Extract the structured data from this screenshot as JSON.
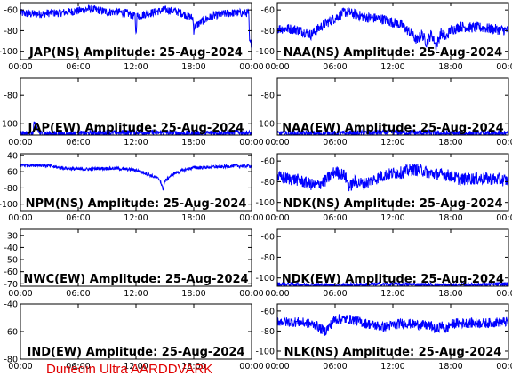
{
  "footer": "Dunedin Ultra AARDDVARK",
  "colors": {
    "trace": "#0000ff",
    "frame": "#000000",
    "footer": "#e00000"
  },
  "chart_data": [
    {
      "type": "line",
      "title": "JAP(NS) Amplitude: 25-Aug-2024",
      "xticks": [
        "00:00",
        "06:00",
        "12:00",
        "18:00",
        "00:00"
      ],
      "yticks": [
        "-60",
        "-80",
        "-100"
      ],
      "ylim": [
        -108,
        -53
      ],
      "series": [
        {
          "x": [
            0,
            1,
            2,
            3,
            4,
            5,
            6,
            7,
            8,
            9,
            10,
            11,
            11.9,
            12,
            12.1,
            13,
            14,
            15,
            16,
            17,
            17.9,
            18,
            18.1,
            19,
            20,
            21,
            22,
            23,
            23.7,
            23.8,
            24
          ],
          "y": [
            -63,
            -64,
            -64,
            -63,
            -63,
            -62,
            -61,
            -59,
            -60,
            -62,
            -62,
            -63,
            -66,
            -84,
            -66,
            -64,
            -62,
            -60,
            -61,
            -64,
            -68,
            -80,
            -76,
            -70,
            -66,
            -64,
            -63,
            -63,
            -63,
            -92,
            -92
          ],
          "noise": 4
        }
      ]
    },
    {
      "type": "line",
      "title": "NAA(NS) Amplitude: 25-Aug-2024",
      "xticks": [
        "00:00",
        "06:00",
        "12:00",
        "18:00",
        "00:00"
      ],
      "yticks": [
        "-60",
        "-80",
        "-100"
      ],
      "ylim": [
        -108,
        -53
      ],
      "series": [
        {
          "x": [
            0,
            1,
            2,
            3,
            3.5,
            4,
            5,
            6,
            7,
            8,
            9,
            10,
            11,
            12,
            13,
            14,
            14.5,
            15,
            15.5,
            16,
            16.5,
            17,
            17.5,
            18,
            18.5,
            19,
            20,
            21,
            22,
            23,
            24
          ],
          "y": [
            -78,
            -78,
            -79,
            -82,
            -84,
            -80,
            -73,
            -68,
            -62,
            -64,
            -67,
            -68,
            -69,
            -72,
            -75,
            -84,
            -90,
            -83,
            -92,
            -83,
            -95,
            -82,
            -87,
            -79,
            -78,
            -76,
            -77,
            -77,
            -78,
            -79,
            -80
          ],
          "noise": 5
        }
      ]
    },
    {
      "type": "line",
      "title": "JAP(EW) Amplitude: 25-Aug-2024",
      "xticks": [
        "00:00",
        "06:00",
        "12:00",
        "18:00",
        "00:00"
      ],
      "yticks": [
        "-80",
        "-100"
      ],
      "ylim": [
        -108,
        -68
      ],
      "series": [
        {
          "x": [
            0,
            1,
            1.3,
            1.4,
            2,
            6,
            12,
            18,
            23,
            24
          ],
          "y": [
            -107,
            -107,
            -107,
            -99,
            -107,
            -107,
            -106,
            -107,
            -106,
            -107
          ],
          "noise": 2
        }
      ]
    },
    {
      "type": "line",
      "title": "NAA(EW) Amplitude: 25-Aug-2024",
      "xticks": [
        "00:00",
        "06:00",
        "12:00",
        "18:00",
        "00:00"
      ],
      "yticks": [
        "-80",
        "-100"
      ],
      "ylim": [
        -108,
        -68
      ],
      "series": [
        {
          "x": [
            0,
            6,
            12,
            18,
            24
          ],
          "y": [
            -107,
            -107,
            -106,
            -107,
            -107
          ],
          "noise": 2
        }
      ]
    },
    {
      "type": "line",
      "title": "NPM(NS) Amplitude: 25-Aug-2024",
      "xticks": [
        "00:00",
        "06:00",
        "12:00",
        "18:00",
        "00:00"
      ],
      "yticks": [
        "-40",
        "-60",
        "-80",
        "-100"
      ],
      "ylim": [
        -108,
        -38
      ],
      "series": [
        {
          "x": [
            0,
            1,
            2,
            3,
            4,
            5,
            6,
            7,
            8,
            9,
            10,
            11,
            12,
            13,
            14,
            14.5,
            14.8,
            15,
            15.5,
            16,
            17,
            18,
            19,
            20,
            21,
            22,
            23,
            24
          ],
          "y": [
            -52,
            -52,
            -52,
            -53,
            -55,
            -56,
            -57,
            -57,
            -56,
            -56,
            -56,
            -57,
            -58,
            -62,
            -67,
            -70,
            -82,
            -72,
            -66,
            -62,
            -58,
            -55,
            -55,
            -54,
            -54,
            -53,
            -53,
            -53
          ],
          "noise": 2
        }
      ]
    },
    {
      "type": "line",
      "title": "NDK(NS) Amplitude: 25-Aug-2024",
      "xticks": [
        "00:00",
        "06:00",
        "12:00",
        "18:00",
        "00:00"
      ],
      "yticks": [
        "-60",
        "-80",
        "-100"
      ],
      "ylim": [
        -108,
        -53
      ],
      "series": [
        {
          "x": [
            0,
            1,
            2,
            3,
            4,
            5,
            6,
            7,
            7.5,
            8,
            9,
            10,
            11,
            12,
            13,
            14,
            15,
            16,
            17,
            18,
            19,
            20,
            21,
            22,
            23,
            24
          ],
          "y": [
            -75,
            -77,
            -78,
            -81,
            -84,
            -79,
            -70,
            -74,
            -85,
            -80,
            -82,
            -78,
            -74,
            -72,
            -71,
            -68,
            -69,
            -72,
            -73,
            -74,
            -78,
            -77,
            -77,
            -77,
            -78,
            -79
          ],
          "noise": 6
        }
      ]
    },
    {
      "type": "line",
      "title": "NWC(EW) Amplitude: 25-Aug-2024",
      "xticks": [
        "00:00",
        "06:00",
        "12:00",
        "18:00",
        "00:00"
      ],
      "yticks": [
        "-30",
        "-40",
        "-50",
        "-60",
        "-70"
      ],
      "ylim": [
        -72,
        -25
      ],
      "series": []
    },
    {
      "type": "line",
      "title": "NDK(EW) Amplitude: 25-Aug-2024",
      "xticks": [
        "00:00",
        "06:00",
        "12:00",
        "18:00",
        "00:00"
      ],
      "yticks": [
        "-60",
        "-80",
        "-100"
      ],
      "ylim": [
        -108,
        -53
      ],
      "series": [
        {
          "x": [
            0,
            6,
            12,
            18,
            24
          ],
          "y": [
            -106,
            -107,
            -106,
            -107,
            -106
          ],
          "noise": 2
        }
      ]
    },
    {
      "type": "line",
      "title": "IND(EW) Amplitude: 25-Aug-2024",
      "xticks": [
        "00:00",
        "06:00",
        "12:00",
        "18:00",
        "00:00"
      ],
      "yticks": [
        "-40",
        "-60",
        "-80"
      ],
      "ylim": [
        -80,
        -40
      ],
      "series": []
    },
    {
      "type": "line",
      "title": "NLK(NS) Amplitude: 25-Aug-2024",
      "xticks": [
        "00:00",
        "06:00",
        "12:00",
        "18:00",
        "00:00"
      ],
      "yticks": [
        "-60",
        "-80",
        "-100"
      ],
      "ylim": [
        -108,
        -53
      ],
      "series": [
        {
          "x": [
            0,
            1,
            2,
            3,
            4,
            4.5,
            5,
            5.5,
            6,
            7,
            8,
            9,
            10,
            11,
            12,
            13,
            14,
            15,
            16,
            16.5,
            17,
            17.5,
            18,
            19,
            20,
            21,
            22,
            23,
            24
          ],
          "y": [
            -70,
            -71,
            -71,
            -72,
            -74,
            -78,
            -80,
            -74,
            -68,
            -68,
            -69,
            -72,
            -74,
            -76,
            -74,
            -72,
            -73,
            -74,
            -75,
            -79,
            -74,
            -79,
            -73,
            -72,
            -72,
            -72,
            -72,
            -71,
            -71
          ],
          "noise": 5
        }
      ]
    }
  ]
}
